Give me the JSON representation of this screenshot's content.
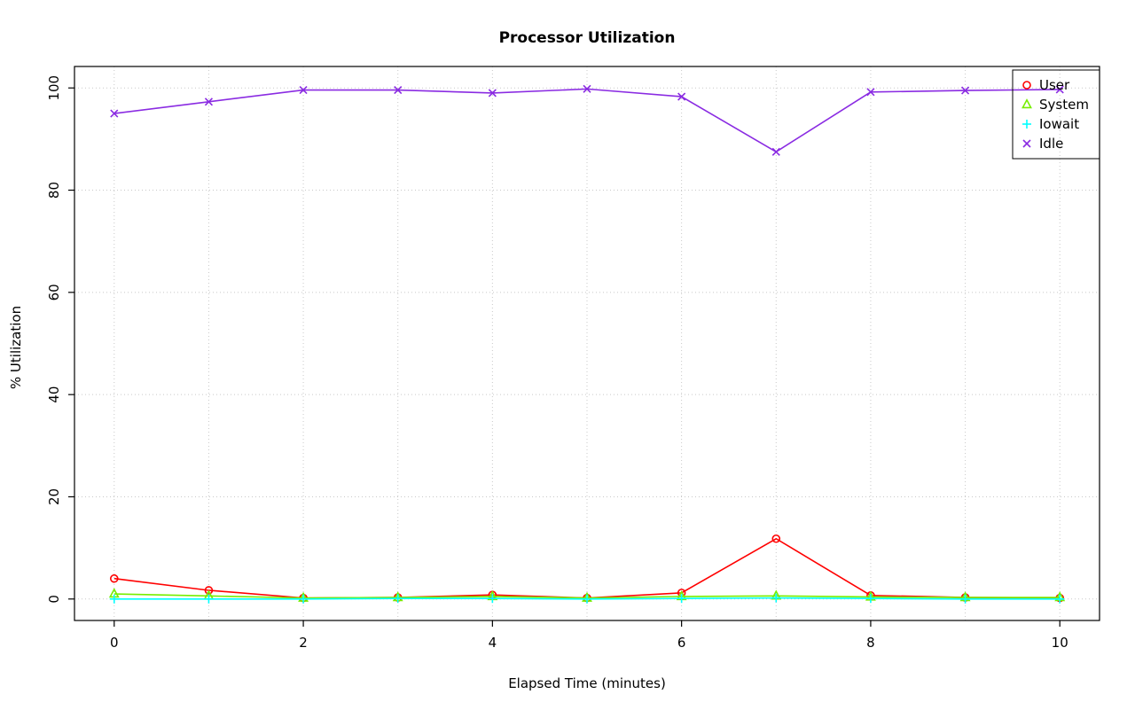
{
  "chart_data": {
    "type": "line",
    "title": "Processor Utilization",
    "xlabel": "Elapsed Time (minutes)",
    "ylabel": "% Utilization",
    "xlim": [
      0,
      10
    ],
    "ylim": [
      0,
      100
    ],
    "x": [
      0,
      1,
      2,
      3,
      4,
      5,
      6,
      7,
      8,
      9,
      10
    ],
    "xticks": [
      0,
      2,
      4,
      6,
      8,
      10
    ],
    "yticks": [
      0,
      20,
      40,
      60,
      80,
      100
    ],
    "grid_x": [
      0,
      1,
      2,
      3,
      4,
      5,
      6,
      7,
      8,
      9,
      10
    ],
    "grid_y": [
      0,
      20,
      40,
      60,
      80,
      100
    ],
    "grid_on": true,
    "grid_color": "#C8C8C8",
    "legend_position": "top-right",
    "series": [
      {
        "name": "User",
        "color": "#FF0000",
        "marker": "circle",
        "values": [
          4,
          1.7,
          0.2,
          0.3,
          0.8,
          0.2,
          1.2,
          11.8,
          0.7,
          0.3,
          0.2
        ]
      },
      {
        "name": "System",
        "color": "#76EE00",
        "marker": "triangle",
        "values": [
          1,
          0.6,
          0.2,
          0.3,
          0.5,
          0.2,
          0.5,
          0.6,
          0.4,
          0.3,
          0.3
        ]
      },
      {
        "name": "Iowait",
        "color": "#00FFFF",
        "marker": "plus",
        "values": [
          0,
          0,
          0,
          0.1,
          0.1,
          0,
          0.1,
          0.2,
          0.1,
          0,
          0
        ]
      },
      {
        "name": "Idle",
        "color": "#8A2BE2",
        "marker": "x",
        "values": [
          95,
          97.3,
          99.6,
          99.6,
          99,
          99.8,
          98.3,
          87.5,
          99.2,
          99.5,
          99.7
        ]
      }
    ]
  }
}
